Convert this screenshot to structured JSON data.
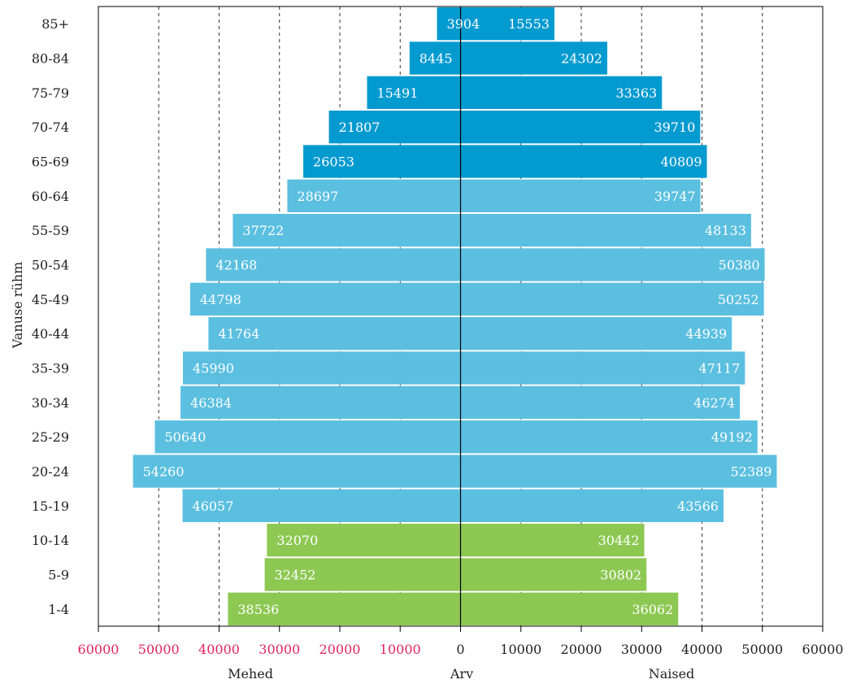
{
  "chart_data": {
    "type": "bar",
    "orientation": "population-pyramid",
    "categories": [
      "85+",
      "80-84",
      "75-79",
      "70-74",
      "65-69",
      "60-64",
      "55-59",
      "50-54",
      "45-49",
      "40-44",
      "35-39",
      "30-34",
      "25-29",
      "20-24",
      "15-19",
      "10-14",
      "5-9",
      "1-4"
    ],
    "series": [
      {
        "name": "Mehed",
        "side": "left",
        "values": [
          3904,
          8445,
          15491,
          21807,
          26053,
          28697,
          37722,
          42168,
          44798,
          41764,
          45990,
          46384,
          50640,
          54260,
          46057,
          32070,
          32452,
          38536
        ]
      },
      {
        "name": "Naised",
        "side": "right",
        "values": [
          15553,
          24302,
          33363,
          39710,
          40809,
          39747,
          48133,
          50380,
          50252,
          44939,
          47117,
          46274,
          49192,
          52389,
          43566,
          30442,
          30802,
          36062
        ]
      }
    ],
    "band_colors": {
      "elderly": "#039ad0",
      "working": "#5bbfe0",
      "young": "#8dc853"
    },
    "band_by_category": [
      "elderly",
      "elderly",
      "elderly",
      "elderly",
      "elderly",
      "working",
      "working",
      "working",
      "working",
      "working",
      "working",
      "working",
      "working",
      "working",
      "working",
      "young",
      "young",
      "young"
    ],
    "x_ticks_left": [
      "60000",
      "50000",
      "40000",
      "30000",
      "20000",
      "10000"
    ],
    "x_ticks_right": [
      "0",
      "10000",
      "20000",
      "30000",
      "40000",
      "50000",
      "60000"
    ],
    "x_tick_color_left": "#e0245e",
    "xlim": [
      -60000,
      60000
    ],
    "xlabel_left": "Mehed",
    "xlabel_center": "Arv",
    "xlabel_right": "Naised",
    "ylabel": "Vanuse rühm",
    "grid": "vertical dashed",
    "title": ""
  }
}
